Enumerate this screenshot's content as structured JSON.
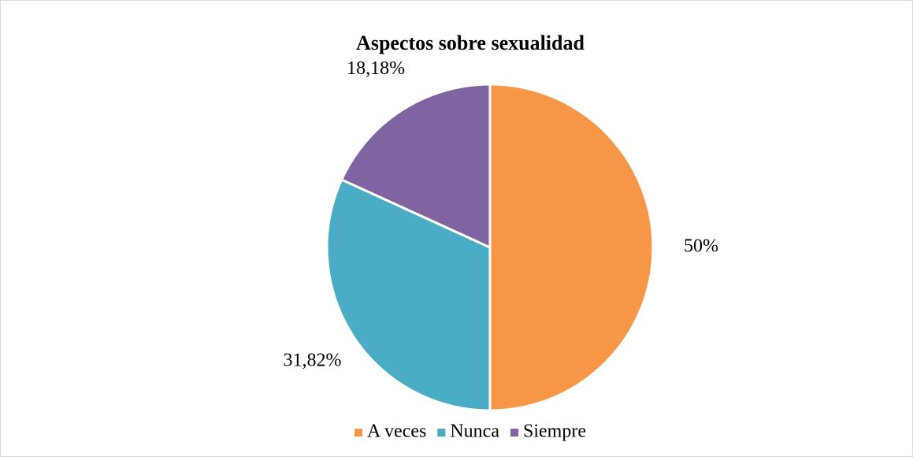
{
  "chart_data": {
    "type": "pie",
    "title": "Aspectos sobre sexualidad",
    "categories": [
      "A veces",
      "Nunca",
      "Siempre"
    ],
    "values": [
      50,
      31.82,
      18.18
    ],
    "value_labels": [
      "50%",
      "31,82%",
      "18,18%"
    ],
    "colors": [
      "#f79646",
      "#4bacc6",
      "#8064a2"
    ],
    "legend": "bottom"
  }
}
